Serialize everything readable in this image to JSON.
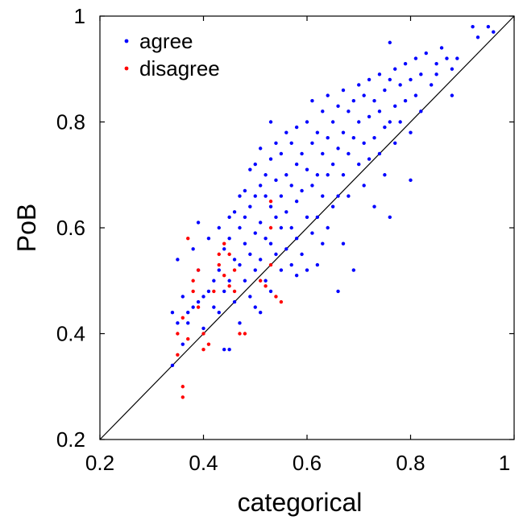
{
  "chart_data": {
    "type": "scatter",
    "xlabel": "categorical",
    "ylabel": "PoB",
    "xlim": [
      0.2,
      1.0
    ],
    "ylim": [
      0.2,
      1.0
    ],
    "xticks": [
      "0.2",
      "0.4",
      "0.6",
      "0.8",
      "1"
    ],
    "yticks": [
      "0.2",
      "0.4",
      "0.6",
      "0.8",
      "1"
    ],
    "reference_line": "y = x",
    "grid": false,
    "legend_position": "top-left",
    "series": [
      {
        "name": "agree",
        "color": "#0000ff",
        "points": [
          [
            0.34,
            0.34
          ],
          [
            0.34,
            0.44
          ],
          [
            0.35,
            0.54
          ],
          [
            0.35,
            0.42
          ],
          [
            0.36,
            0.47
          ],
          [
            0.36,
            0.38
          ],
          [
            0.37,
            0.44
          ],
          [
            0.37,
            0.42
          ],
          [
            0.38,
            0.56
          ],
          [
            0.38,
            0.45
          ],
          [
            0.39,
            0.61
          ],
          [
            0.39,
            0.52
          ],
          [
            0.39,
            0.46
          ],
          [
            0.4,
            0.47
          ],
          [
            0.4,
            0.41
          ],
          [
            0.41,
            0.48
          ],
          [
            0.41,
            0.58
          ],
          [
            0.42,
            0.5
          ],
          [
            0.42,
            0.45
          ],
          [
            0.43,
            0.6
          ],
          [
            0.43,
            0.52
          ],
          [
            0.43,
            0.44
          ],
          [
            0.44,
            0.56
          ],
          [
            0.44,
            0.48
          ],
          [
            0.44,
            0.37
          ],
          [
            0.45,
            0.62
          ],
          [
            0.45,
            0.58
          ],
          [
            0.45,
            0.5
          ],
          [
            0.45,
            0.37
          ],
          [
            0.46,
            0.54
          ],
          [
            0.46,
            0.63
          ],
          [
            0.46,
            0.46
          ],
          [
            0.47,
            0.66
          ],
          [
            0.47,
            0.6
          ],
          [
            0.47,
            0.53
          ],
          [
            0.47,
            0.42
          ],
          [
            0.48,
            0.67
          ],
          [
            0.48,
            0.62
          ],
          [
            0.48,
            0.57
          ],
          [
            0.48,
            0.5
          ],
          [
            0.49,
            0.71
          ],
          [
            0.49,
            0.64
          ],
          [
            0.49,
            0.55
          ],
          [
            0.49,
            0.47
          ],
          [
            0.5,
            0.72
          ],
          [
            0.5,
            0.66
          ],
          [
            0.5,
            0.59
          ],
          [
            0.5,
            0.52
          ],
          [
            0.5,
            0.45
          ],
          [
            0.51,
            0.75
          ],
          [
            0.51,
            0.68
          ],
          [
            0.51,
            0.61
          ],
          [
            0.51,
            0.54
          ],
          [
            0.51,
            0.44
          ],
          [
            0.52,
            0.7
          ],
          [
            0.52,
            0.66
          ],
          [
            0.52,
            0.58
          ],
          [
            0.52,
            0.5
          ],
          [
            0.53,
            0.8
          ],
          [
            0.53,
            0.73
          ],
          [
            0.53,
            0.64
          ],
          [
            0.53,
            0.57
          ],
          [
            0.53,
            0.48
          ],
          [
            0.54,
            0.76
          ],
          [
            0.54,
            0.69
          ],
          [
            0.54,
            0.62
          ],
          [
            0.54,
            0.55
          ],
          [
            0.55,
            0.74
          ],
          [
            0.55,
            0.66
          ],
          [
            0.55,
            0.6
          ],
          [
            0.55,
            0.52
          ],
          [
            0.56,
            0.78
          ],
          [
            0.56,
            0.7
          ],
          [
            0.56,
            0.63
          ],
          [
            0.56,
            0.56
          ],
          [
            0.57,
            0.76
          ],
          [
            0.57,
            0.68
          ],
          [
            0.57,
            0.6
          ],
          [
            0.57,
            0.53
          ],
          [
            0.58,
            0.79
          ],
          [
            0.58,
            0.72
          ],
          [
            0.58,
            0.65
          ],
          [
            0.58,
            0.58
          ],
          [
            0.58,
            0.51
          ],
          [
            0.59,
            0.74
          ],
          [
            0.59,
            0.67
          ],
          [
            0.59,
            0.55
          ],
          [
            0.6,
            0.8
          ],
          [
            0.6,
            0.71
          ],
          [
            0.6,
            0.62
          ],
          [
            0.6,
            0.52
          ],
          [
            0.61,
            0.84
          ],
          [
            0.61,
            0.76
          ],
          [
            0.61,
            0.68
          ],
          [
            0.61,
            0.59
          ],
          [
            0.62,
            0.78
          ],
          [
            0.62,
            0.7
          ],
          [
            0.62,
            0.62
          ],
          [
            0.62,
            0.53
          ],
          [
            0.63,
            0.82
          ],
          [
            0.63,
            0.74
          ],
          [
            0.63,
            0.66
          ],
          [
            0.63,
            0.57
          ],
          [
            0.64,
            0.85
          ],
          [
            0.64,
            0.77
          ],
          [
            0.64,
            0.7
          ],
          [
            0.64,
            0.6
          ],
          [
            0.65,
            0.8
          ],
          [
            0.65,
            0.72
          ],
          [
            0.65,
            0.64
          ],
          [
            0.66,
            0.83
          ],
          [
            0.66,
            0.75
          ],
          [
            0.66,
            0.66
          ],
          [
            0.66,
            0.48
          ],
          [
            0.67,
            0.86
          ],
          [
            0.67,
            0.78
          ],
          [
            0.67,
            0.7
          ],
          [
            0.67,
            0.57
          ],
          [
            0.68,
            0.82
          ],
          [
            0.68,
            0.74
          ],
          [
            0.68,
            0.66
          ],
          [
            0.69,
            0.84
          ],
          [
            0.69,
            0.77
          ],
          [
            0.69,
            0.52
          ],
          [
            0.7,
            0.87
          ],
          [
            0.7,
            0.8
          ],
          [
            0.7,
            0.72
          ],
          [
            0.71,
            0.85
          ],
          [
            0.71,
            0.76
          ],
          [
            0.71,
            0.68
          ],
          [
            0.72,
            0.88
          ],
          [
            0.72,
            0.81
          ],
          [
            0.72,
            0.73
          ],
          [
            0.73,
            0.84
          ],
          [
            0.73,
            0.77
          ],
          [
            0.73,
            0.64
          ],
          [
            0.74,
            0.89
          ],
          [
            0.74,
            0.82
          ],
          [
            0.74,
            0.74
          ],
          [
            0.75,
            0.86
          ],
          [
            0.75,
            0.79
          ],
          [
            0.75,
            0.7
          ],
          [
            0.76,
            0.95
          ],
          [
            0.76,
            0.88
          ],
          [
            0.76,
            0.8
          ],
          [
            0.76,
            0.62
          ],
          [
            0.77,
            0.9
          ],
          [
            0.77,
            0.83
          ],
          [
            0.77,
            0.76
          ],
          [
            0.78,
            0.87
          ],
          [
            0.78,
            0.8
          ],
          [
            0.79,
            0.91
          ],
          [
            0.79,
            0.84
          ],
          [
            0.8,
            0.88
          ],
          [
            0.8,
            0.78
          ],
          [
            0.8,
            0.69
          ],
          [
            0.81,
            0.92
          ],
          [
            0.81,
            0.85
          ],
          [
            0.82,
            0.89
          ],
          [
            0.82,
            0.82
          ],
          [
            0.83,
            0.93
          ],
          [
            0.84,
            0.87
          ],
          [
            0.85,
            0.91
          ],
          [
            0.85,
            0.89
          ],
          [
            0.86,
            0.94
          ],
          [
            0.87,
            0.92
          ],
          [
            0.88,
            0.9
          ],
          [
            0.88,
            0.85
          ],
          [
            0.89,
            0.92
          ],
          [
            0.92,
            0.98
          ],
          [
            0.93,
            0.96
          ],
          [
            0.95,
            0.98
          ],
          [
            0.96,
            0.97
          ]
        ]
      },
      {
        "name": "disagree",
        "color": "#ff0000",
        "points": [
          [
            0.35,
            0.4
          ],
          [
            0.35,
            0.36
          ],
          [
            0.36,
            0.43
          ],
          [
            0.36,
            0.28
          ],
          [
            0.36,
            0.3
          ],
          [
            0.37,
            0.39
          ],
          [
            0.37,
            0.58
          ],
          [
            0.38,
            0.5
          ],
          [
            0.38,
            0.48
          ],
          [
            0.39,
            0.52
          ],
          [
            0.39,
            0.45
          ],
          [
            0.4,
            0.4
          ],
          [
            0.4,
            0.37
          ],
          [
            0.41,
            0.38
          ],
          [
            0.42,
            0.48
          ],
          [
            0.43,
            0.55
          ],
          [
            0.43,
            0.53
          ],
          [
            0.44,
            0.57
          ],
          [
            0.44,
            0.51
          ],
          [
            0.45,
            0.55
          ],
          [
            0.45,
            0.49
          ],
          [
            0.46,
            0.52
          ],
          [
            0.46,
            0.48
          ],
          [
            0.47,
            0.4
          ],
          [
            0.52,
            0.49
          ],
          [
            0.53,
            0.65
          ],
          [
            0.53,
            0.6
          ],
          [
            0.53,
            0.53
          ],
          [
            0.54,
            0.47
          ],
          [
            0.55,
            0.46
          ],
          [
            0.48,
            0.4
          ],
          [
            0.51,
            0.5
          ]
        ]
      }
    ]
  }
}
